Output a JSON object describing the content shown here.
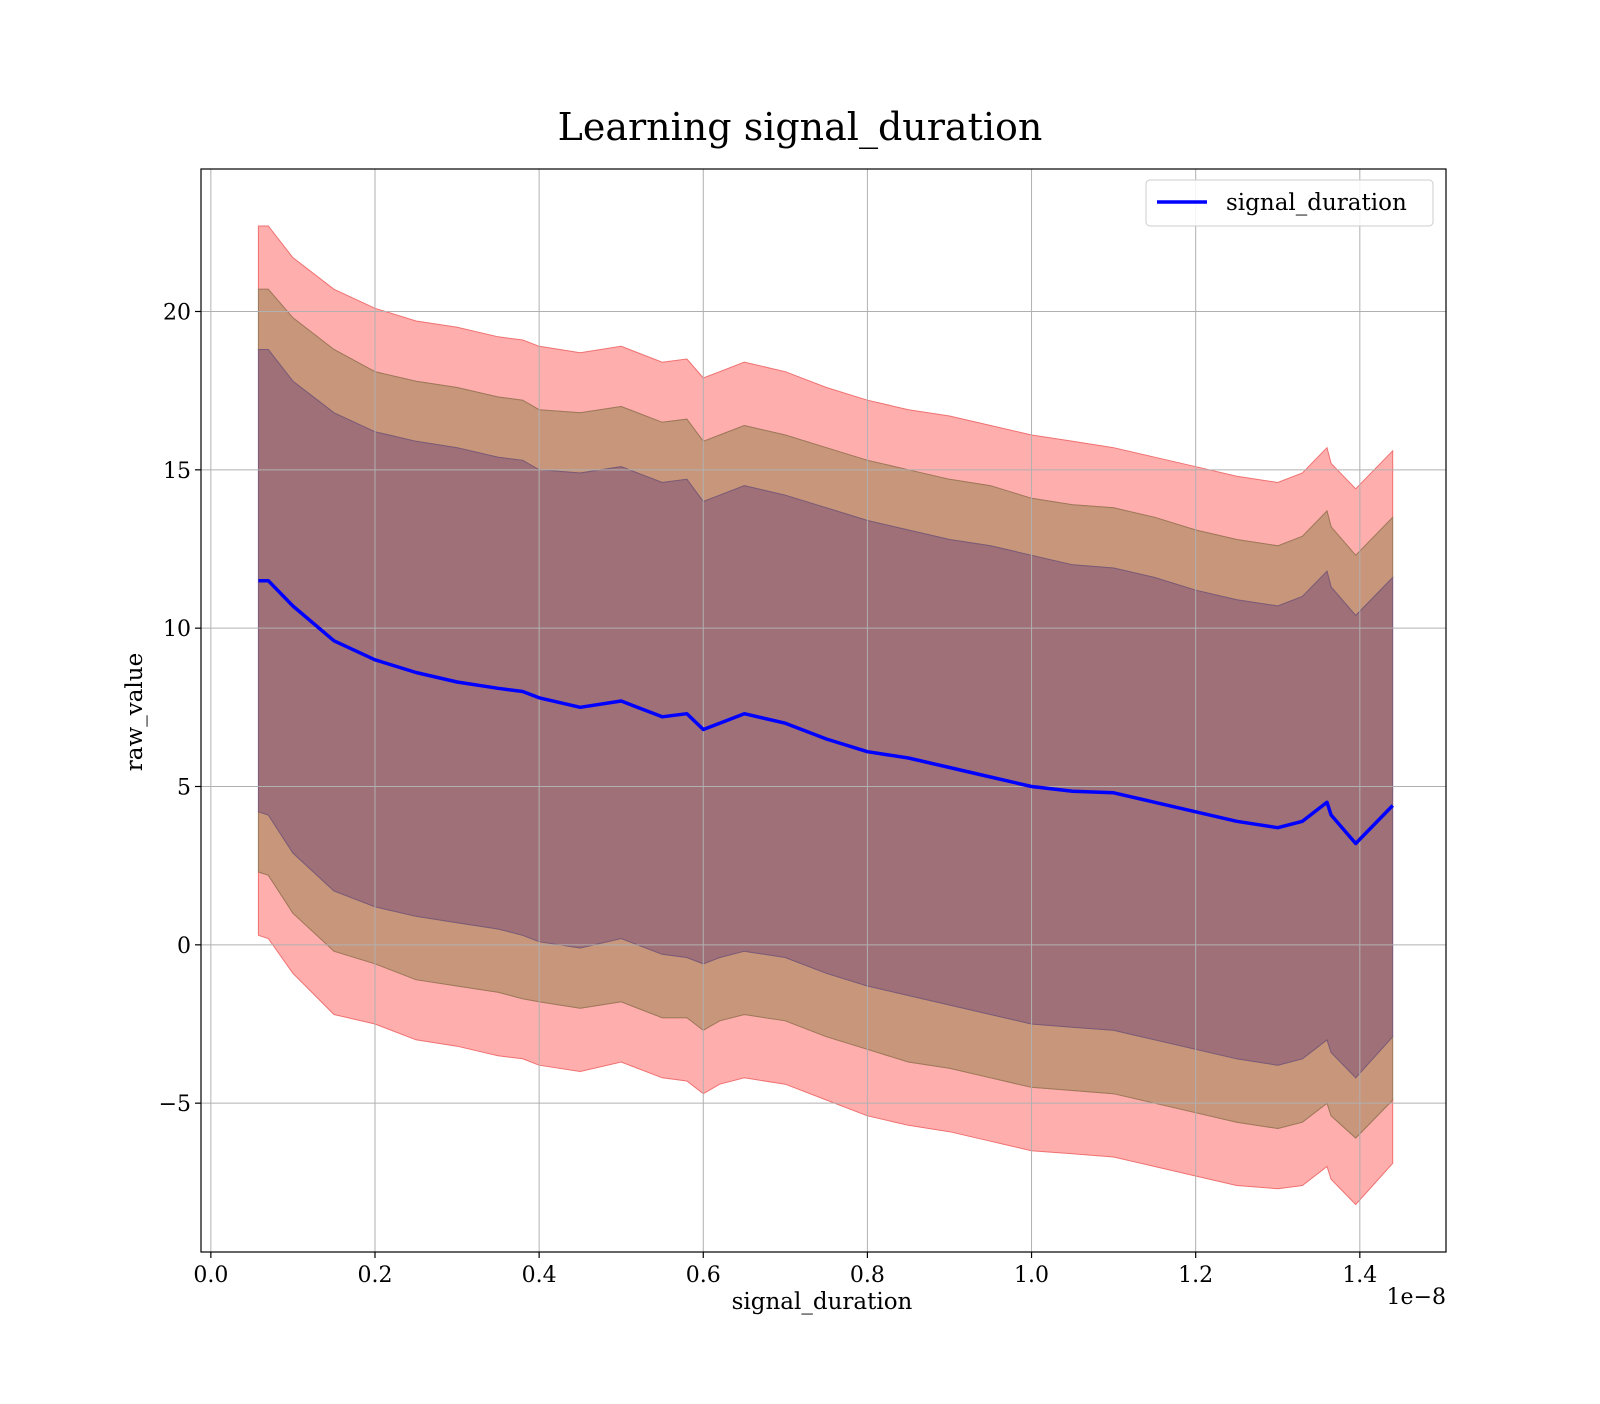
{
  "chart_data": {
    "type": "area",
    "title": "Learning signal_duration",
    "xlabel": "signal_duration",
    "ylabel": "raw_value",
    "x_offset_label": "1e−8",
    "xlim": [
      -0.012,
      1.505
    ],
    "ylim": [
      -9.7,
      24.5
    ],
    "x_ticks": [
      0.0,
      0.2,
      0.4,
      0.6,
      0.8,
      1.0,
      1.2,
      1.4
    ],
    "x_tick_labels": [
      "0.0",
      "0.2",
      "0.4",
      "0.6",
      "0.8",
      "1.0",
      "1.2",
      "1.4"
    ],
    "y_ticks": [
      -5,
      0,
      5,
      10,
      15,
      20
    ],
    "y_tick_labels": [
      "−5",
      "0",
      "5",
      "10",
      "15",
      "20"
    ],
    "grid": true,
    "legend": {
      "position": "top-right",
      "entries": [
        "signal_duration"
      ]
    },
    "colors": {
      "line": "#0000ff",
      "band_outer": "#ff9a9a",
      "band_middle": "#c8967a",
      "band_inner": "#a07078",
      "grid": "#b0b0b0"
    },
    "x": [
      0.058,
      0.07,
      0.1,
      0.15,
      0.2,
      0.25,
      0.3,
      0.35,
      0.38,
      0.4,
      0.45,
      0.5,
      0.55,
      0.58,
      0.6,
      0.62,
      0.65,
      0.7,
      0.75,
      0.8,
      0.85,
      0.9,
      0.95,
      1.0,
      1.05,
      1.1,
      1.15,
      1.2,
      1.25,
      1.3,
      1.33,
      1.36,
      1.365,
      1.395,
      1.44
    ],
    "series": [
      {
        "name": "signal_duration",
        "values": [
          11.5,
          11.5,
          10.7,
          9.6,
          9.0,
          8.6,
          8.3,
          8.1,
          8.0,
          7.8,
          7.5,
          7.7,
          7.2,
          7.3,
          6.8,
          7.0,
          7.3,
          7.0,
          6.5,
          6.1,
          5.9,
          5.6,
          5.3,
          5.0,
          4.85,
          4.8,
          4.5,
          4.2,
          3.9,
          3.7,
          3.9,
          4.5,
          4.1,
          3.2,
          4.4
        ]
      }
    ],
    "bands": [
      {
        "lower": [
          0.3,
          0.2,
          -0.9,
          -2.2,
          -2.5,
          -3.0,
          -3.2,
          -3.5,
          -3.6,
          -3.8,
          -4.0,
          -3.7,
          -4.2,
          -4.3,
          -4.7,
          -4.4,
          -4.2,
          -4.4,
          -4.9,
          -5.4,
          -5.7,
          -5.9,
          -6.2,
          -6.5,
          -6.6,
          -6.7,
          -7.0,
          -7.3,
          -7.6,
          -7.7,
          -7.6,
          -7.0,
          -7.4,
          -8.2,
          -6.9
        ]
      },
      {
        "lower": [
          2.3,
          2.2,
          1.0,
          -0.2,
          -0.6,
          -1.1,
          -1.3,
          -1.5,
          -1.7,
          -1.8,
          -2.0,
          -1.8,
          -2.3,
          -2.3,
          -2.7,
          -2.4,
          -2.2,
          -2.4,
          -2.9,
          -3.3,
          -3.7,
          -3.9,
          -4.2,
          -4.5,
          -4.6,
          -4.7,
          -5.0,
          -5.3,
          -5.6,
          -5.8,
          -5.6,
          -5.0,
          -5.4,
          -6.1,
          -4.9
        ]
      },
      {
        "lower": [
          4.2,
          4.1,
          2.9,
          1.7,
          1.2,
          0.9,
          0.7,
          0.5,
          0.3,
          0.1,
          -0.1,
          0.2,
          -0.3,
          -0.4,
          -0.6,
          -0.4,
          -0.2,
          -0.4,
          -0.9,
          -1.3,
          -1.6,
          -1.9,
          -2.2,
          -2.5,
          -2.6,
          -2.7,
          -3.0,
          -3.3,
          -3.6,
          -3.8,
          -3.6,
          -3.0,
          -3.4,
          -4.2,
          -2.9
        ],
        "upper": [
          18.8,
          18.8,
          17.8,
          16.8,
          16.2,
          15.9,
          15.7,
          15.4,
          15.3,
          15.0,
          14.9,
          15.1,
          14.6,
          14.7,
          14.0,
          14.2,
          14.5,
          14.2,
          13.8,
          13.4,
          13.1,
          12.8,
          12.6,
          12.3,
          12.0,
          11.9,
          11.6,
          11.2,
          10.9,
          10.7,
          11.0,
          11.8,
          11.3,
          10.4,
          11.6
        ]
      },
      {
        "upper": [
          20.7,
          20.7,
          19.8,
          18.8,
          18.1,
          17.8,
          17.6,
          17.3,
          17.2,
          16.9,
          16.8,
          17.0,
          16.5,
          16.6,
          15.9,
          16.1,
          16.4,
          16.1,
          15.7,
          15.3,
          15.0,
          14.7,
          14.5,
          14.1,
          13.9,
          13.8,
          13.5,
          13.1,
          12.8,
          12.6,
          12.9,
          13.7,
          13.2,
          12.3,
          13.5
        ]
      },
      {
        "upper": [
          22.7,
          22.7,
          21.7,
          20.7,
          20.1,
          19.7,
          19.5,
          19.2,
          19.1,
          18.9,
          18.7,
          18.9,
          18.4,
          18.5,
          17.9,
          18.1,
          18.4,
          18.1,
          17.6,
          17.2,
          16.9,
          16.7,
          16.4,
          16.1,
          15.9,
          15.7,
          15.4,
          15.1,
          14.8,
          14.6,
          14.9,
          15.7,
          15.2,
          14.4,
          15.6
        ]
      }
    ]
  }
}
